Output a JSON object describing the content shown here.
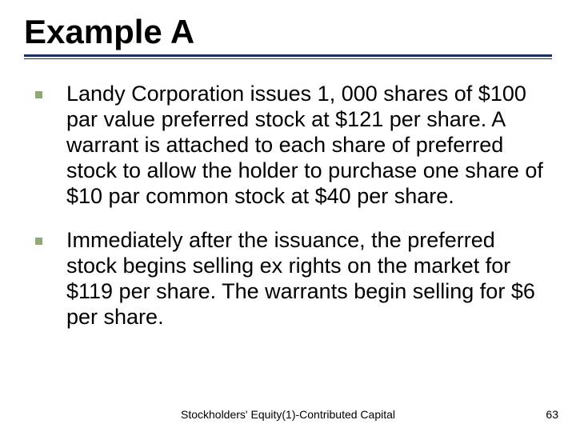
{
  "slide": {
    "title": "Example A",
    "title_fontsize": 42,
    "title_color": "#000000",
    "underline_color": "#1a2f66",
    "bullets": [
      {
        "text": "Landy Corporation issues 1, 000 shares of $100 par value preferred stock at $121 per share.  A warrant is attached to each share of preferred stock to allow the holder to purchase one share of $10 par common stock at $40 per share."
      },
      {
        "text": "Immediately after the issuance, the preferred stock begins selling ex rights on the market for $119 per share. The warrants begin selling for $6 per share."
      }
    ],
    "bullet_fontsize": 27,
    "bullet_marker_color": "#90a878",
    "bullet_text_color": "#000000",
    "footer": "Stockholders' Equity(1)-Contributed Capital",
    "footer_fontsize": 14,
    "page_number": "63",
    "background_color": "#ffffff"
  }
}
